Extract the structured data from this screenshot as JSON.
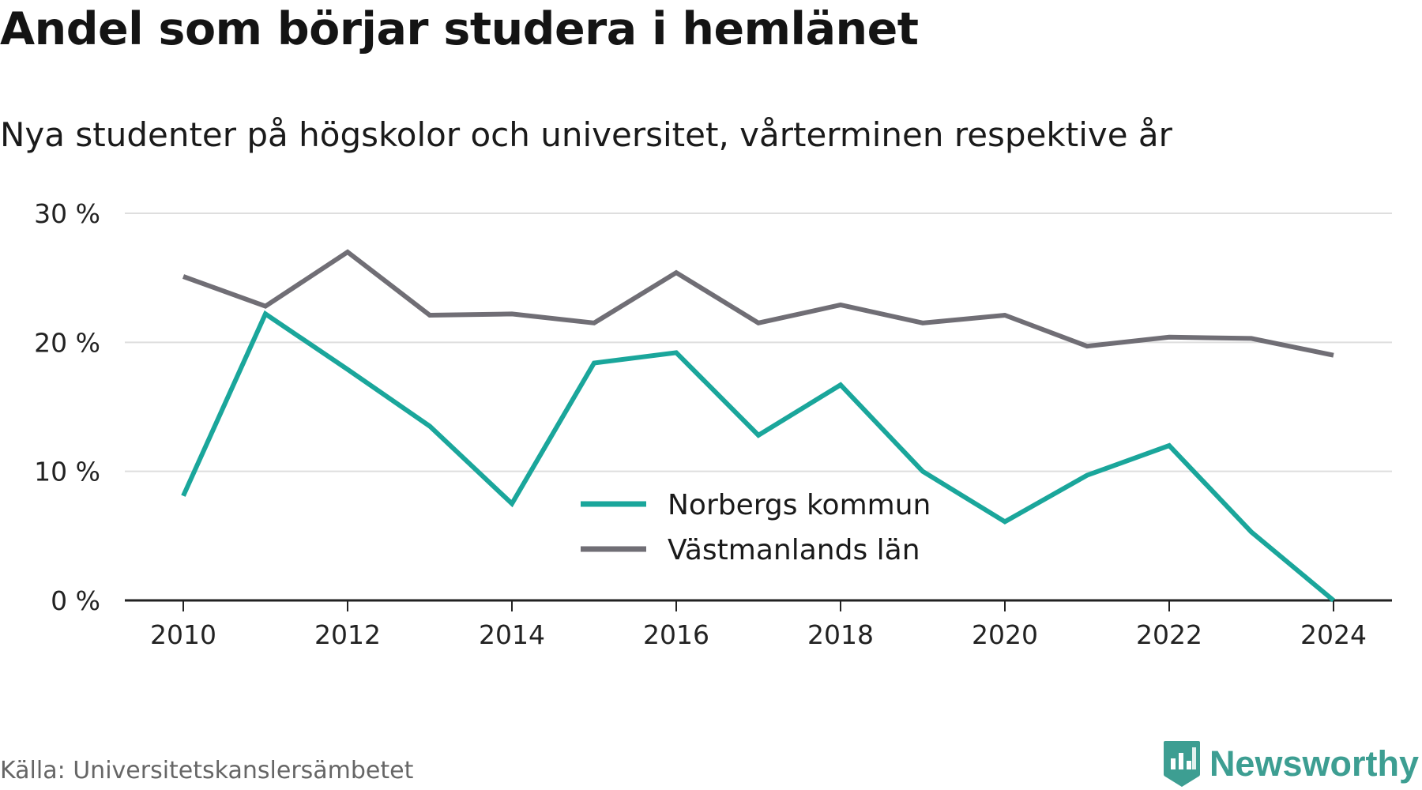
{
  "title": "Andel som börjar studera i hemlänet",
  "subtitle": "Nya studenter på högskolor och universitet, vårterminen respektive år",
  "source": "Källa: Universitetskanslersämbetet",
  "brand": {
    "name": "Newsworthy",
    "icon": "newsworthy-logo-icon",
    "color": "#3d9e92"
  },
  "chart_data": {
    "type": "line",
    "title": "Andel som börjar studera i hemlänet",
    "subtitle": "Nya studenter på högskolor och universitet, vårterminen respektive år",
    "x": [
      2010,
      2011,
      2012,
      2013,
      2014,
      2015,
      2016,
      2017,
      2018,
      2019,
      2020,
      2021,
      2022,
      2023,
      2024
    ],
    "x_ticks": [
      "2010",
      "2012",
      "2014",
      "2016",
      "2018",
      "2020",
      "2022",
      "2024"
    ],
    "y_ticks": [
      "0 %",
      "10 %",
      "20 %",
      "30 %"
    ],
    "ylim": [
      0,
      30
    ],
    "grid": true,
    "legend_position": "center-bottom",
    "series": [
      {
        "name": "Norbergs kommun",
        "color": "#1aa69b",
        "values": [
          8.1,
          22.2,
          17.9,
          13.5,
          7.5,
          18.4,
          19.2,
          12.8,
          16.7,
          10.0,
          6.1,
          9.7,
          12.0,
          5.3,
          0.0
        ]
      },
      {
        "name": "Västmanlands län",
        "color": "#706e75",
        "values": [
          25.1,
          22.8,
          27.0,
          22.1,
          22.2,
          21.5,
          25.4,
          21.5,
          22.9,
          21.5,
          22.1,
          19.7,
          20.4,
          20.3,
          19.0
        ]
      }
    ]
  }
}
